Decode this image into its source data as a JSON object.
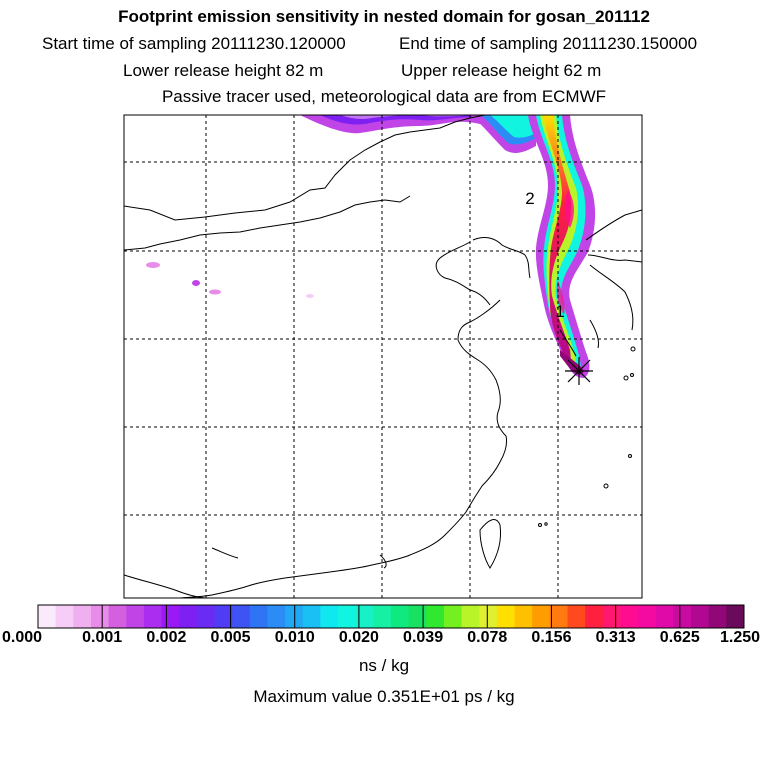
{
  "header": {
    "title": "Footprint emission sensitivity in nested domain for gosan_201112",
    "start_sampling": "Start time of sampling 20111230.120000",
    "end_sampling": "End time of sampling 20111230.150000",
    "lower_release": "Lower release height   82 m",
    "upper_release": "Upper release height   62 m",
    "tracer_note": "Passive tracer used, meteorological data are from ECMWF"
  },
  "map": {
    "labels": [
      "2",
      "1"
    ],
    "receptor_marker": "receptor-cross"
  },
  "colorbar": {
    "colors": [
      "#fbeafb",
      "#f6cdf6",
      "#f0b0f0",
      "#e98ce9",
      "#d460e0",
      "#c145e6",
      "#ab2ef0",
      "#9a19f4",
      "#7f20f2",
      "#6a2cf4",
      "#4f3cf4",
      "#3f52f4",
      "#2f74f4",
      "#2a8cf4",
      "#20a8f4",
      "#1ac0f4",
      "#10e8f0",
      "#10f4e0",
      "#18f0c8",
      "#16f0a4",
      "#10e880",
      "#18e060",
      "#30e830",
      "#74f020",
      "#b8f428",
      "#e0f030",
      "#ffe000",
      "#ffc000",
      "#ff9c00",
      "#ff7a10",
      "#ff4a20",
      "#ff2040",
      "#ff1870",
      "#ff0c90",
      "#f40aa0",
      "#e00aa8",
      "#c80aa0",
      "#b00890",
      "#900878",
      "#6a0a5a"
    ],
    "ticks": [
      "0.000",
      "0.001",
      "0.002",
      "0.005",
      "0.010",
      "0.020",
      "0.039",
      "0.078",
      "0.156",
      "0.313",
      "0.625",
      "1.250"
    ],
    "units": "ns / kg"
  },
  "max_value": "Maximum value  0.351E+01 ps / kg"
}
